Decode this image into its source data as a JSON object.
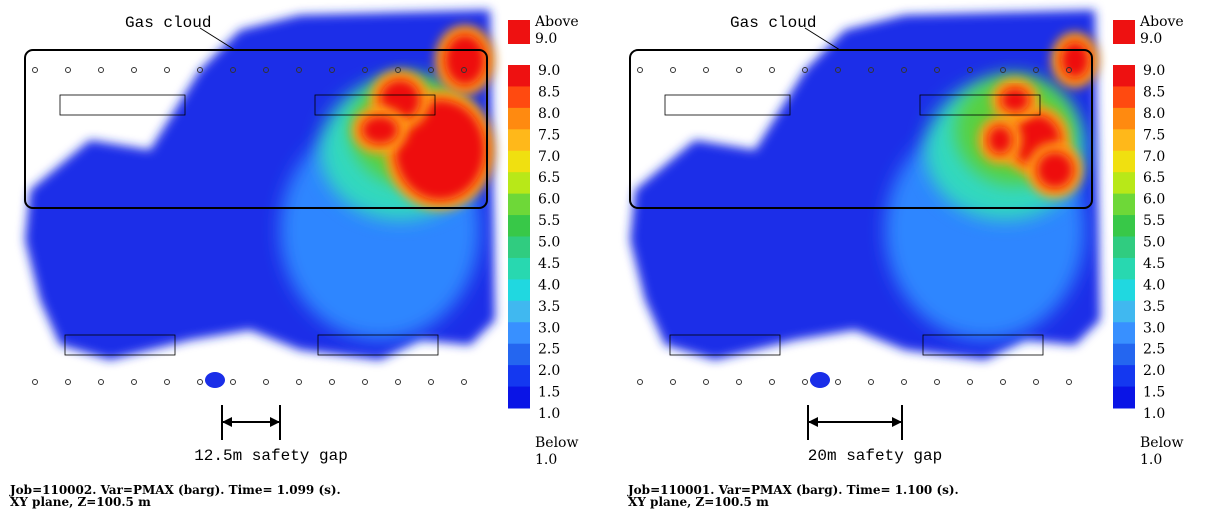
{
  "panels": [
    {
      "annotation": "Gas cloud",
      "gap_label": "12.5m safety gap",
      "caption_line1": "Job=110002.  Var=PMAX (barg). Time=  1.099 (s).",
      "caption_line2": "XY plane, Z=100.5 m",
      "legend": {
        "above": "Above",
        "above_value": "9.0",
        "levels": [
          "9.0",
          "8.5",
          "8.0",
          "7.5",
          "7.0",
          "6.5",
          "6.0",
          "5.5",
          "5.0",
          "4.5",
          "4.0",
          "3.5",
          "3.0",
          "2.5",
          "2.0",
          "1.5",
          "1.0"
        ],
        "below": "Below",
        "below_value": "1.0"
      }
    },
    {
      "annotation": "Gas cloud",
      "gap_label": "20m safety gap",
      "caption_line1": "Job=110001.  Var=PMAX (barg). Time=  1.100 (s).",
      "caption_line2": "XY plane, Z=100.5 m",
      "legend": {
        "above": "Above",
        "above_value": "9.0",
        "levels": [
          "9.0",
          "8.5",
          "8.0",
          "7.5",
          "7.0",
          "6.5",
          "6.0",
          "5.5",
          "5.0",
          "4.5",
          "4.0",
          "3.5",
          "3.0",
          "2.5",
          "2.0",
          "1.5",
          "1.0"
        ],
        "below": "Below",
        "below_value": "1.0"
      }
    }
  ]
}
